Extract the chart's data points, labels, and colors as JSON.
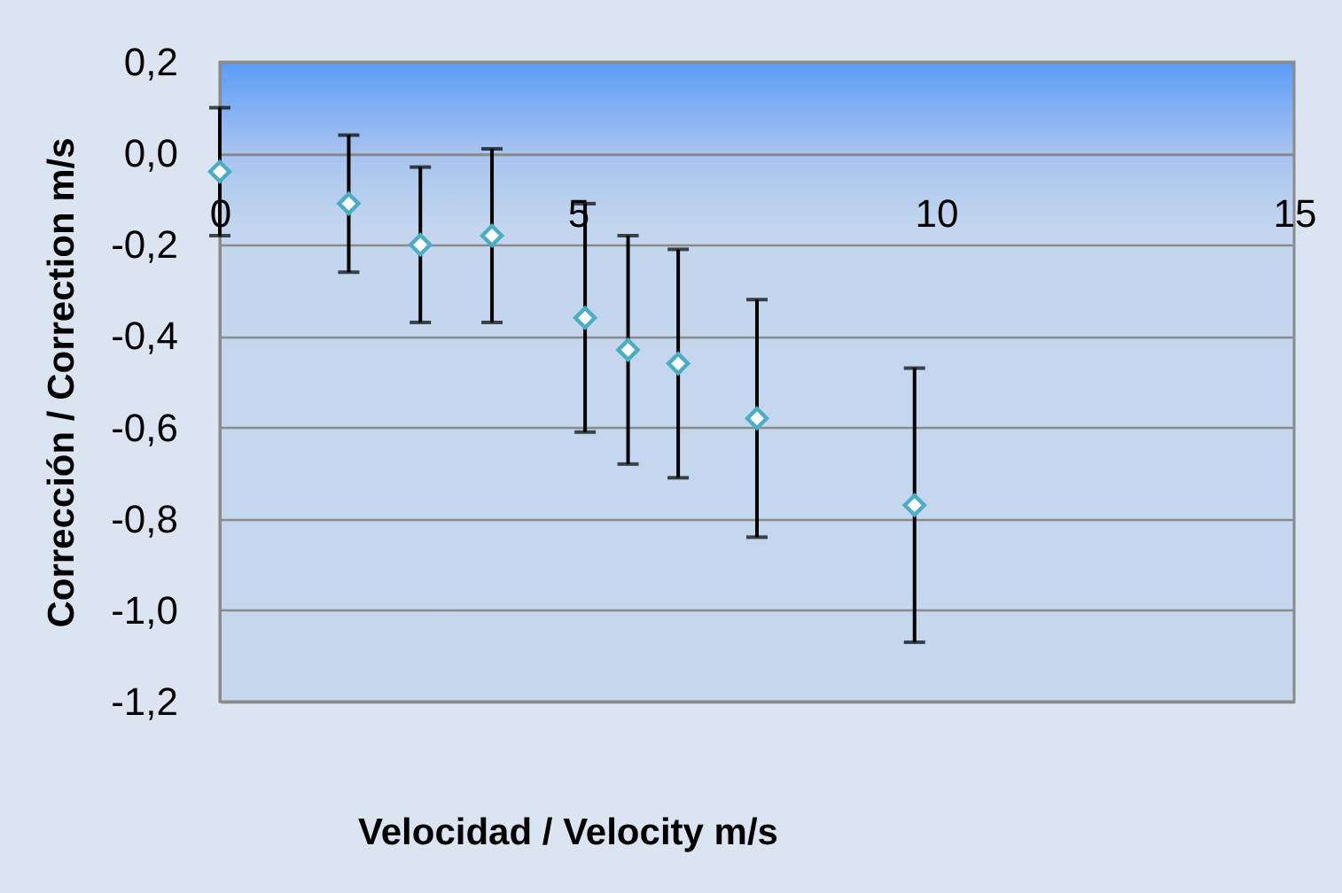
{
  "chart_data": {
    "type": "scatter",
    "xlabel": "Velocidad / Velocity m/s",
    "ylabel": "Corrección / Correction m/s",
    "x": [
      0,
      1.8,
      2.8,
      3.8,
      5.1,
      5.7,
      6.4,
      7.5,
      9.7
    ],
    "series": [
      {
        "color": "#4bacc6",
        "values": [
          -0.04,
          -0.11,
          -0.2,
          -0.18,
          -0.36,
          -0.43,
          -0.46,
          -0.58,
          -0.77
        ],
        "errors": [
          0.14,
          0.15,
          0.17,
          0.19,
          0.25,
          0.25,
          0.25,
          0.26,
          0.3
        ]
      }
    ],
    "xlim": [
      0,
      15
    ],
    "xticks": [
      0,
      5,
      10,
      15
    ],
    "ylim": [
      -1.2,
      0.2
    ],
    "yticks": [
      {
        "value": -1.2,
        "label": "-1,2"
      },
      {
        "value": -1.0,
        "label": "-1,0"
      },
      {
        "value": -0.8,
        "label": "-0,8"
      },
      {
        "value": -0.6,
        "label": "-0,6"
      },
      {
        "value": -0.4,
        "label": "-0,4"
      },
      {
        "value": -0.2,
        "label": "-0,2"
      },
      {
        "value": 0.0,
        "label": "0,0"
      },
      {
        "value": 0.2,
        "label": "0,2"
      }
    ],
    "grid": "y",
    "marker": "diamond",
    "legend": false
  }
}
